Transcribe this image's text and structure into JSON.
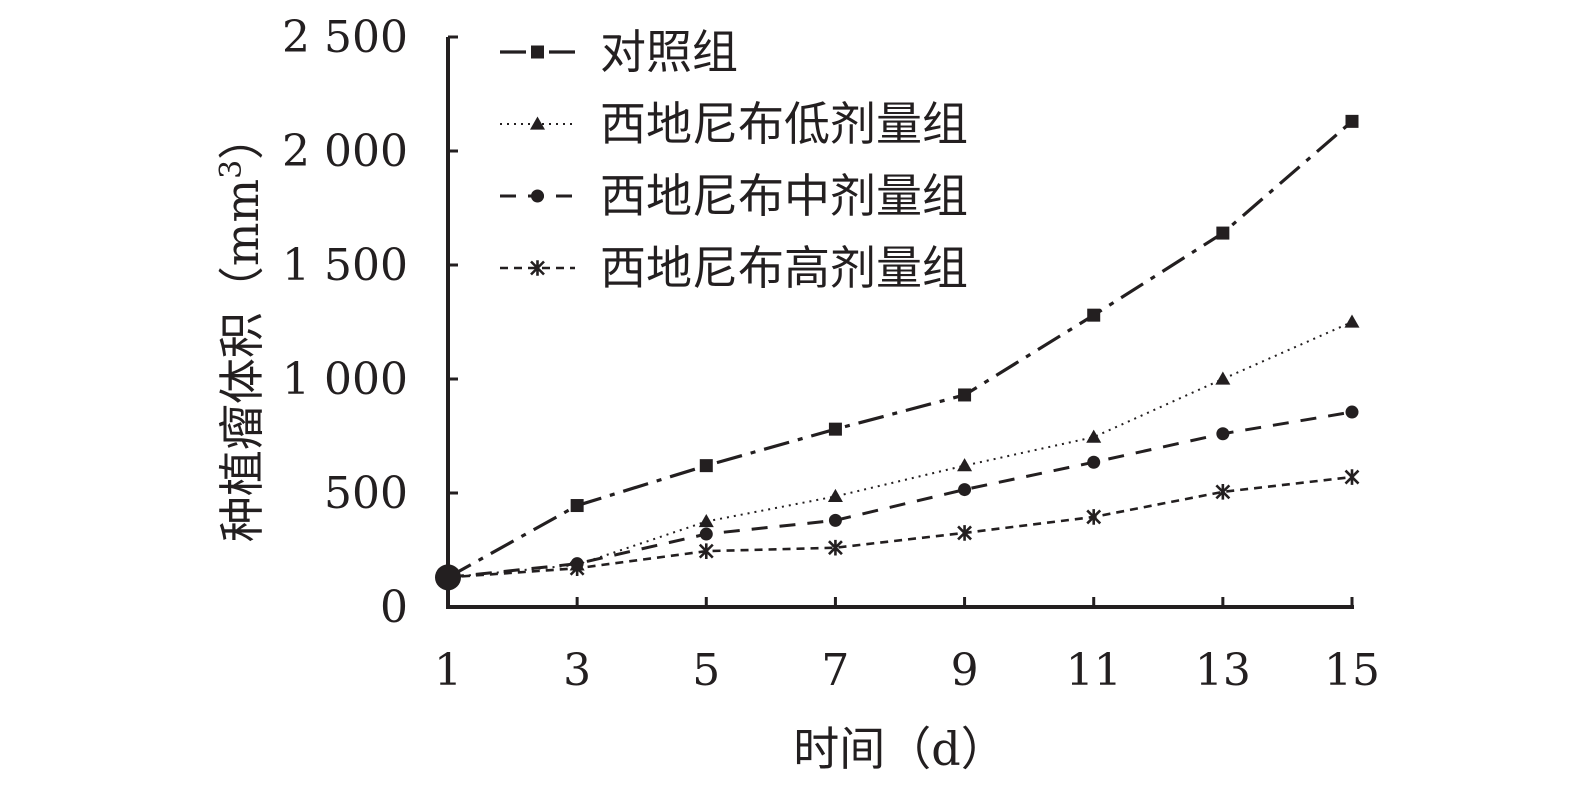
{
  "chart_data": {
    "type": "line",
    "xlabel": "时间（d）",
    "ylabel": "种植瘤体积（mm³）",
    "ylabel_parts": {
      "prefix": "种植瘤体积（mm",
      "sup": "3",
      "suffix": "）"
    },
    "x": [
      1,
      3,
      5,
      7,
      9,
      11,
      13,
      15
    ],
    "x_tick_labels": [
      "1",
      "3",
      "5",
      "7",
      "9",
      "11",
      "13",
      "15"
    ],
    "y_ticks": [
      0,
      500,
      1000,
      1500,
      2000,
      2500
    ],
    "y_tick_labels": [
      "0",
      "500",
      "1 000",
      "1 500",
      "2 000",
      "2 500"
    ],
    "xlim": [
      1,
      15
    ],
    "ylim": [
      0,
      2500
    ],
    "grid": false,
    "legend_position": "top-left",
    "series": [
      {
        "name": "对照组",
        "marker": "square",
        "dash": "dashdot",
        "values": [
          130,
          445,
          620,
          780,
          930,
          1280,
          1640,
          2130
        ]
      },
      {
        "name": "西地尼布低剂量组",
        "marker": "triangle",
        "dash": "dotted",
        "values": [
          130,
          185,
          375,
          485,
          620,
          745,
          1000,
          1250
        ]
      },
      {
        "name": "西地尼布中剂量组",
        "marker": "circle",
        "dash": "dashed",
        "values": [
          130,
          190,
          320,
          380,
          515,
          635,
          760,
          855
        ]
      },
      {
        "name": "西地尼布高剂量组",
        "marker": "star",
        "dash": "shortdash",
        "values": [
          130,
          170,
          245,
          260,
          325,
          395,
          505,
          570
        ]
      }
    ],
    "colors": {
      "ink": "#231f20"
    }
  }
}
